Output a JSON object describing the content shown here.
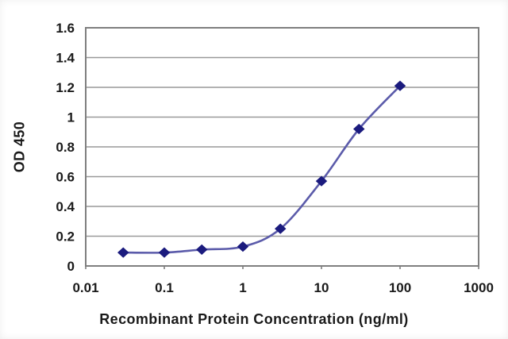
{
  "chart_data": {
    "type": "line",
    "title": "",
    "xlabel": "Recombinant Protein Concentration (ng/ml)",
    "ylabel": "OD 450",
    "x_scale": "log",
    "xlim": [
      0.01,
      1000
    ],
    "ylim": [
      0,
      1.6
    ],
    "x_ticks": [
      "0.01",
      "0.1",
      "1",
      "10",
      "100",
      "1000"
    ],
    "y_ticks": [
      "0",
      "0.2",
      "0.4",
      "0.6",
      "0.8",
      "1",
      "1.2",
      "1.4",
      "1.6"
    ],
    "grid": "horizontal",
    "legend": "none",
    "series": [
      {
        "x": [
          0.03,
          0.1,
          0.3,
          1,
          3,
          10,
          30,
          100
        ],
        "y": [
          0.09,
          0.09,
          0.11,
          0.13,
          0.25,
          0.57,
          0.92,
          1.21
        ],
        "marker": "diamond"
      }
    ],
    "colors": {
      "line": "#5b5baa",
      "marker": "#1b1b7e",
      "grid": "#999999",
      "border": "#7f7f7f",
      "text": "#1a1a1a"
    }
  }
}
